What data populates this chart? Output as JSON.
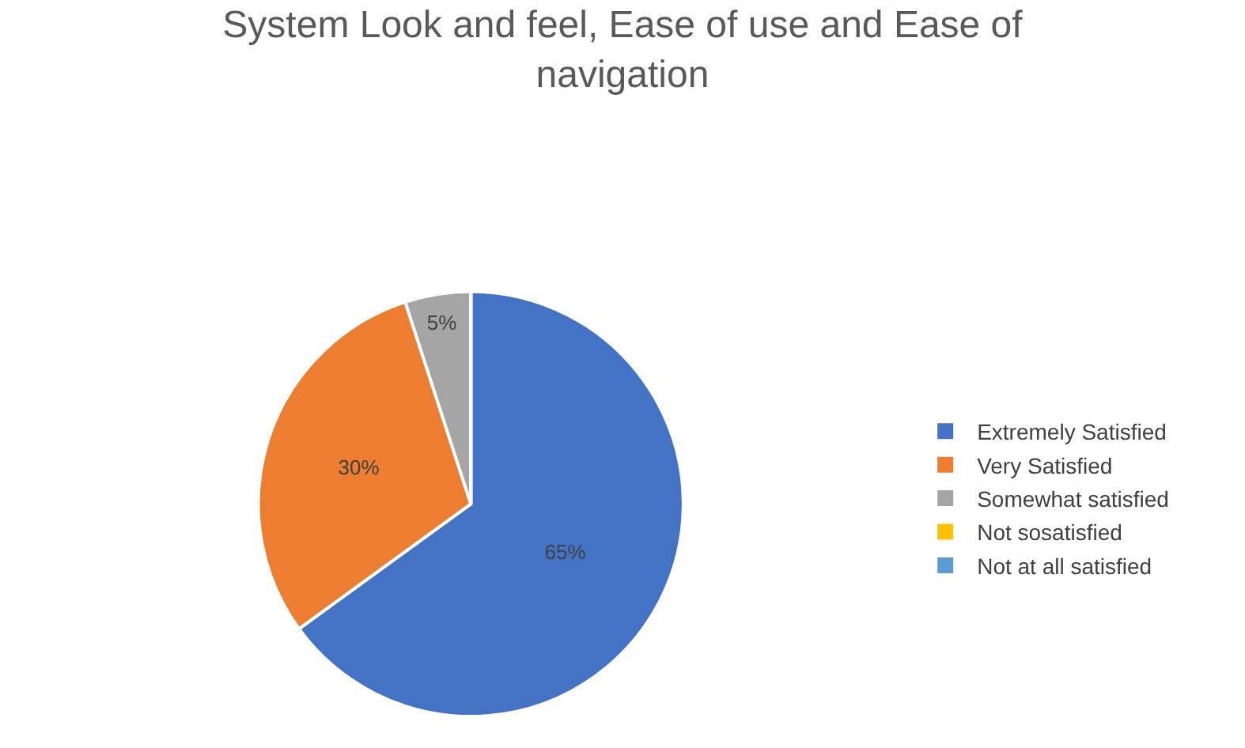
{
  "chart_data": {
    "type": "pie",
    "title": "System Look and feel, Ease of use and Ease of navigation",
    "categories": [
      "Extremely Satisfied",
      "Very Satisfied",
      "Somewhat satisfied",
      "Not sosatisfied",
      "Not at all satisfied"
    ],
    "values": [
      65,
      30,
      5,
      0,
      0
    ],
    "value_labels": [
      "65%",
      "30%",
      "5%",
      null,
      null
    ],
    "colors": [
      "#4472c4",
      "#ed7d31",
      "#a5a5a5",
      "#ffc000",
      "#5b9bd5"
    ],
    "legend": "right"
  }
}
